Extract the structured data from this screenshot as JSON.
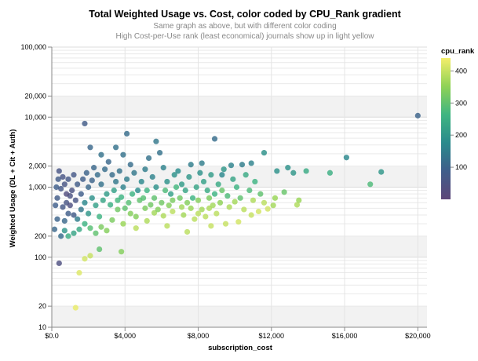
{
  "chart_data": {
    "type": "scatter",
    "title": "Total Weighted Usage vs. Cost, color coded by CPU_Rank gradient",
    "subtitles": [
      "Same graph as above, but with different color coding",
      "High Cost-per-Use rank (least economical) journals show up in light yellow"
    ],
    "xlabel": "subscription_cost",
    "ylabel": "Weighted Usage (DL + Cit + Auth)",
    "xscale": "linear",
    "yscale": "log",
    "xlim": [
      0,
      20500
    ],
    "ylim": [
      10,
      100000
    ],
    "xticks": [
      0,
      4000,
      8000,
      12000,
      16000,
      20000
    ],
    "xtick_labels": [
      "$0.0",
      "$4,000",
      "$8,000",
      "$12,000",
      "$16,000",
      "$20,000"
    ],
    "yticks": [
      10,
      20,
      100,
      200,
      1000,
      2000,
      10000,
      20000,
      100000
    ],
    "ytick_labels": [
      "10",
      "20",
      "100",
      "200",
      "1,000",
      "2,000",
      "10,000",
      "20,000",
      "100,000"
    ],
    "grid": true,
    "color_field": "cpu_rank",
    "legend": {
      "title": "cpu_rank",
      "placement": "right",
      "ticks": [
        100,
        200,
        300,
        400
      ],
      "range": [
        0,
        440
      ],
      "colors": [
        "#5d4679",
        "#3f5d8a",
        "#2a8a8c",
        "#3fb581",
        "#8fd255",
        "#f4ee6b"
      ]
    },
    "points": [
      {
        "x": 20000,
        "y": 10500,
        "c": 100
      },
      {
        "x": 16100,
        "y": 2650,
        "c": 170
      },
      {
        "x": 18000,
        "y": 1650,
        "c": 200
      },
      {
        "x": 17400,
        "y": 1100,
        "c": 280
      },
      {
        "x": 15200,
        "y": 1600,
        "c": 250
      },
      {
        "x": 13900,
        "y": 1700,
        "c": 240
      },
      {
        "x": 13200,
        "y": 1600,
        "c": 200
      },
      {
        "x": 12900,
        "y": 1900,
        "c": 190
      },
      {
        "x": 12300,
        "y": 1700,
        "c": 190
      },
      {
        "x": 12700,
        "y": 850,
        "c": 310
      },
      {
        "x": 13500,
        "y": 650,
        "c": 360
      },
      {
        "x": 13400,
        "y": 560,
        "c": 380
      },
      {
        "x": 11600,
        "y": 3100,
        "c": 190
      },
      {
        "x": 10900,
        "y": 2200,
        "c": 160
      },
      {
        "x": 10400,
        "y": 2100,
        "c": 150
      },
      {
        "x": 9800,
        "y": 2050,
        "c": 160
      },
      {
        "x": 9300,
        "y": 1500,
        "c": 170
      },
      {
        "x": 8900,
        "y": 4900,
        "c": 120
      },
      {
        "x": 8200,
        "y": 2200,
        "c": 150
      },
      {
        "x": 7600,
        "y": 2100,
        "c": 150
      },
      {
        "x": 5700,
        "y": 4500,
        "c": 140
      },
      {
        "x": 4100,
        "y": 5800,
        "c": 120
      },
      {
        "x": 3500,
        "y": 3700,
        "c": 130
      },
      {
        "x": 3900,
        "y": 2900,
        "c": 130
      },
      {
        "x": 2700,
        "y": 2900,
        "c": 130
      },
      {
        "x": 2100,
        "y": 3700,
        "c": 110
      },
      {
        "x": 1800,
        "y": 8100,
        "c": 80
      },
      {
        "x": 400,
        "y": 82,
        "c": 40
      },
      {
        "x": 1300,
        "y": 19,
        "c": 430
      },
      {
        "x": 1500,
        "y": 60,
        "c": 420
      },
      {
        "x": 1800,
        "y": 95,
        "c": 410
      },
      {
        "x": 2100,
        "y": 105,
        "c": 400
      },
      {
        "x": 2600,
        "y": 130,
        "c": 300
      },
      {
        "x": 3800,
        "y": 120,
        "c": 340
      },
      {
        "x": 5200,
        "y": 330,
        "c": 380
      },
      {
        "x": 6300,
        "y": 280,
        "c": 390
      },
      {
        "x": 7400,
        "y": 230,
        "c": 390
      },
      {
        "x": 8700,
        "y": 280,
        "c": 400
      },
      {
        "x": 9500,
        "y": 300,
        "c": 400
      },
      {
        "x": 10200,
        "y": 320,
        "c": 410
      },
      {
        "x": 10900,
        "y": 400,
        "c": 400
      },
      {
        "x": 11300,
        "y": 450,
        "c": 410
      },
      {
        "x": 11800,
        "y": 490,
        "c": 410
      },
      {
        "x": 11600,
        "y": 600,
        "c": 390
      },
      {
        "x": 12100,
        "y": 550,
        "c": 370
      },
      {
        "x": 12200,
        "y": 700,
        "c": 360
      },
      {
        "x": 9200,
        "y": 600,
        "c": 350
      },
      {
        "x": 8600,
        "y": 500,
        "c": 380
      },
      {
        "x": 8000,
        "y": 420,
        "c": 390
      },
      {
        "x": 7100,
        "y": 520,
        "c": 370
      },
      {
        "x": 6600,
        "y": 450,
        "c": 390
      },
      {
        "x": 6100,
        "y": 390,
        "c": 380
      },
      {
        "x": 5600,
        "y": 430,
        "c": 370
      },
      {
        "x": 5100,
        "y": 500,
        "c": 330
      },
      {
        "x": 4600,
        "y": 260,
        "c": 390
      },
      {
        "x": 4300,
        "y": 420,
        "c": 340
      },
      {
        "x": 3900,
        "y": 300,
        "c": 360
      },
      {
        "x": 3600,
        "y": 480,
        "c": 320
      },
      {
        "x": 3300,
        "y": 340,
        "c": 330
      },
      {
        "x": 3000,
        "y": 240,
        "c": 340
      },
      {
        "x": 2700,
        "y": 270,
        "c": 330
      },
      {
        "x": 2400,
        "y": 220,
        "c": 300
      },
      {
        "x": 2100,
        "y": 260,
        "c": 290
      },
      {
        "x": 1800,
        "y": 300,
        "c": 260
      },
      {
        "x": 1500,
        "y": 250,
        "c": 240
      },
      {
        "x": 1200,
        "y": 220,
        "c": 230
      },
      {
        "x": 900,
        "y": 200,
        "c": 250
      },
      {
        "x": 700,
        "y": 240,
        "c": 200
      },
      {
        "x": 500,
        "y": 200,
        "c": 120
      },
      {
        "x": 700,
        "y": 330,
        "c": 110
      },
      {
        "x": 900,
        "y": 420,
        "c": 90
      },
      {
        "x": 600,
        "y": 520,
        "c": 70
      },
      {
        "x": 800,
        "y": 600,
        "c": 60
      },
      {
        "x": 1000,
        "y": 750,
        "c": 50
      },
      {
        "x": 1300,
        "y": 650,
        "c": 60
      },
      {
        "x": 1100,
        "y": 900,
        "c": 50
      },
      {
        "x": 700,
        "y": 1100,
        "c": 60
      },
      {
        "x": 500,
        "y": 950,
        "c": 70
      },
      {
        "x": 400,
        "y": 1700,
        "c": 60
      },
      {
        "x": 600,
        "y": 1400,
        "c": 60
      },
      {
        "x": 900,
        "y": 1300,
        "c": 70
      },
      {
        "x": 1200,
        "y": 1500,
        "c": 70
      },
      {
        "x": 1400,
        "y": 1100,
        "c": 80
      },
      {
        "x": 1600,
        "y": 800,
        "c": 90
      },
      {
        "x": 1700,
        "y": 1300,
        "c": 90
      },
      {
        "x": 1900,
        "y": 1600,
        "c": 100
      },
      {
        "x": 2000,
        "y": 1000,
        "c": 110
      },
      {
        "x": 2200,
        "y": 1250,
        "c": 100
      },
      {
        "x": 2300,
        "y": 1900,
        "c": 110
      },
      {
        "x": 2500,
        "y": 1500,
        "c": 120
      },
      {
        "x": 2700,
        "y": 1100,
        "c": 130
      },
      {
        "x": 2900,
        "y": 1800,
        "c": 120
      },
      {
        "x": 3100,
        "y": 2300,
        "c": 110
      },
      {
        "x": 3300,
        "y": 1500,
        "c": 120
      },
      {
        "x": 3500,
        "y": 1200,
        "c": 140
      },
      {
        "x": 3700,
        "y": 1700,
        "c": 130
      },
      {
        "x": 3900,
        "y": 1000,
        "c": 160
      },
      {
        "x": 4100,
        "y": 1300,
        "c": 150
      },
      {
        "x": 4300,
        "y": 2100,
        "c": 120
      },
      {
        "x": 4500,
        "y": 1600,
        "c": 140
      },
      {
        "x": 4700,
        "y": 900,
        "c": 180
      },
      {
        "x": 4900,
        "y": 1200,
        "c": 170
      },
      {
        "x": 5100,
        "y": 1800,
        "c": 150
      },
      {
        "x": 5300,
        "y": 2600,
        "c": 130
      },
      {
        "x": 5500,
        "y": 1400,
        "c": 160
      },
      {
        "x": 5700,
        "y": 1000,
        "c": 190
      },
      {
        "x": 5900,
        "y": 3100,
        "c": 130
      },
      {
        "x": 6100,
        "y": 1900,
        "c": 160
      },
      {
        "x": 6300,
        "y": 1200,
        "c": 190
      },
      {
        "x": 6500,
        "y": 800,
        "c": 220
      },
      {
        "x": 6700,
        "y": 1500,
        "c": 190
      },
      {
        "x": 6900,
        "y": 1700,
        "c": 180
      },
      {
        "x": 7100,
        "y": 1100,
        "c": 210
      },
      {
        "x": 7300,
        "y": 900,
        "c": 230
      },
      {
        "x": 7500,
        "y": 1400,
        "c": 200
      },
      {
        "x": 7700,
        "y": 700,
        "c": 260
      },
      {
        "x": 7900,
        "y": 1000,
        "c": 230
      },
      {
        "x": 8100,
        "y": 1600,
        "c": 190
      },
      {
        "x": 8300,
        "y": 1200,
        "c": 220
      },
      {
        "x": 8500,
        "y": 900,
        "c": 240
      },
      {
        "x": 8700,
        "y": 1500,
        "c": 210
      },
      {
        "x": 8900,
        "y": 800,
        "c": 260
      },
      {
        "x": 9100,
        "y": 1100,
        "c": 240
      },
      {
        "x": 9400,
        "y": 1800,
        "c": 200
      },
      {
        "x": 9600,
        "y": 750,
        "c": 280
      },
      {
        "x": 9900,
        "y": 1300,
        "c": 230
      },
      {
        "x": 10100,
        "y": 1000,
        "c": 260
      },
      {
        "x": 10300,
        "y": 700,
        "c": 300
      },
      {
        "x": 10600,
        "y": 1500,
        "c": 240
      },
      {
        "x": 10800,
        "y": 900,
        "c": 280
      },
      {
        "x": 11100,
        "y": 1200,
        "c": 260
      },
      {
        "x": 11400,
        "y": 800,
        "c": 300
      },
      {
        "x": 800,
        "y": 800,
        "c": 30
      },
      {
        "x": 1000,
        "y": 550,
        "c": 40
      },
      {
        "x": 1200,
        "y": 400,
        "c": 80
      },
      {
        "x": 1400,
        "y": 350,
        "c": 150
      },
      {
        "x": 1600,
        "y": 480,
        "c": 140
      },
      {
        "x": 1800,
        "y": 600,
        "c": 170
      },
      {
        "x": 2000,
        "y": 420,
        "c": 200
      },
      {
        "x": 2200,
        "y": 700,
        "c": 190
      },
      {
        "x": 2400,
        "y": 550,
        "c": 220
      },
      {
        "x": 2600,
        "y": 380,
        "c": 260
      },
      {
        "x": 2800,
        "y": 650,
        "c": 230
      },
      {
        "x": 3000,
        "y": 800,
        "c": 210
      },
      {
        "x": 3200,
        "y": 560,
        "c": 250
      },
      {
        "x": 3400,
        "y": 900,
        "c": 220
      },
      {
        "x": 3600,
        "y": 650,
        "c": 270
      },
      {
        "x": 3800,
        "y": 720,
        "c": 260
      },
      {
        "x": 4000,
        "y": 500,
        "c": 300
      },
      {
        "x": 4200,
        "y": 600,
        "c": 290
      },
      {
        "x": 4400,
        "y": 800,
        "c": 260
      },
      {
        "x": 4600,
        "y": 380,
        "c": 340
      },
      {
        "x": 4800,
        "y": 650,
        "c": 300
      },
      {
        "x": 5000,
        "y": 700,
        "c": 290
      },
      {
        "x": 5200,
        "y": 900,
        "c": 260
      },
      {
        "x": 5400,
        "y": 560,
        "c": 320
      },
      {
        "x": 5600,
        "y": 700,
        "c": 300
      },
      {
        "x": 5800,
        "y": 480,
        "c": 340
      },
      {
        "x": 6000,
        "y": 600,
        "c": 320
      },
      {
        "x": 6200,
        "y": 900,
        "c": 280
      },
      {
        "x": 6400,
        "y": 550,
        "c": 340
      },
      {
        "x": 6600,
        "y": 650,
        "c": 330
      },
      {
        "x": 6800,
        "y": 1000,
        "c": 270
      },
      {
        "x": 7000,
        "y": 700,
        "c": 320
      },
      {
        "x": 7200,
        "y": 400,
        "c": 370
      },
      {
        "x": 7400,
        "y": 600,
        "c": 340
      },
      {
        "x": 7600,
        "y": 500,
        "c": 360
      },
      {
        "x": 7800,
        "y": 350,
        "c": 390
      },
      {
        "x": 8000,
        "y": 650,
        "c": 340
      },
      {
        "x": 8200,
        "y": 480,
        "c": 370
      },
      {
        "x": 8400,
        "y": 380,
        "c": 390
      },
      {
        "x": 8600,
        "y": 700,
        "c": 330
      },
      {
        "x": 8800,
        "y": 550,
        "c": 370
      },
      {
        "x": 9000,
        "y": 420,
        "c": 390
      },
      {
        "x": 9300,
        "y": 900,
        "c": 310
      },
      {
        "x": 9700,
        "y": 520,
        "c": 380
      },
      {
        "x": 10000,
        "y": 620,
        "c": 370
      },
      {
        "x": 10500,
        "y": 480,
        "c": 390
      },
      {
        "x": 11000,
        "y": 650,
        "c": 380
      },
      {
        "x": 300,
        "y": 350,
        "c": 100
      },
      {
        "x": 200,
        "y": 550,
        "c": 90
      },
      {
        "x": 300,
        "y": 700,
        "c": 80
      },
      {
        "x": 250,
        "y": 1000,
        "c": 90
      },
      {
        "x": 350,
        "y": 1300,
        "c": 80
      },
      {
        "x": 150,
        "y": 250,
        "c": 110
      }
    ]
  }
}
